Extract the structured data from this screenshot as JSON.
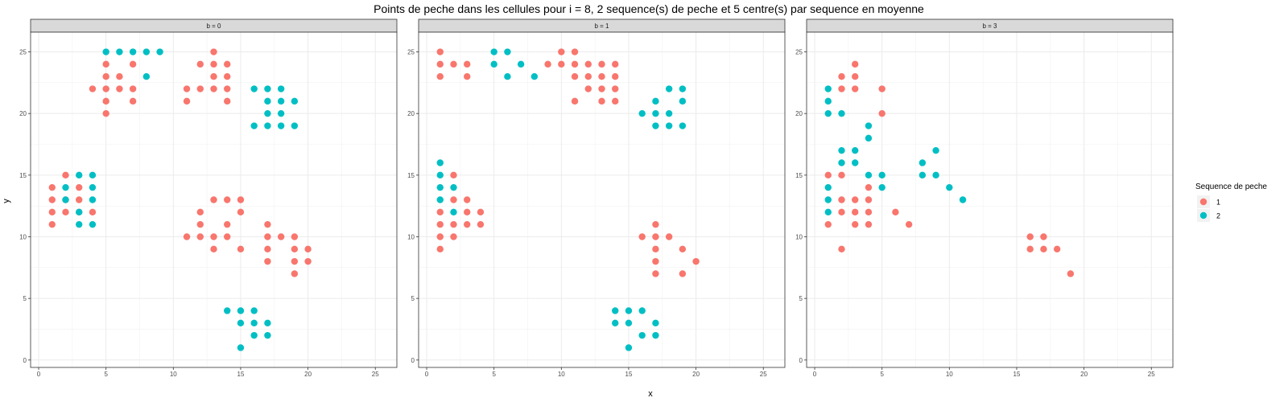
{
  "chart_data": {
    "type": "scatter",
    "title": "Points de peche dans les cellules pour i = 8, 2 sequence(s) de peche et 5 centre(s) par sequence en moyenne",
    "xlabel": "x",
    "ylabel": "y",
    "xlim": [
      -0.6,
      26.6
    ],
    "ylim": [
      -0.6,
      26.6
    ],
    "x_ticks": [
      0,
      5,
      10,
      15,
      20,
      25
    ],
    "y_ticks": [
      0,
      5,
      10,
      15,
      20,
      25
    ],
    "grid": true,
    "legend": {
      "title": "Sequence de peche",
      "position": "right",
      "entries": [
        {
          "label": "1",
          "color": "#F8766D"
        },
        {
          "label": "2",
          "color": "#00BFC4"
        }
      ]
    },
    "panels": [
      {
        "strip": "b = 0",
        "series": [
          {
            "label": "1",
            "color": "#F8766D",
            "points": [
              [
                1,
                11
              ],
              [
                1,
                12
              ],
              [
                1,
                13
              ],
              [
                1,
                14
              ],
              [
                2,
                12
              ],
              [
                2,
                13
              ],
              [
                2,
                15
              ],
              [
                3,
                12
              ],
              [
                3,
                13
              ],
              [
                3,
                14
              ],
              [
                4,
                12
              ],
              [
                4,
                22
              ],
              [
                5,
                20
              ],
              [
                5,
                21
              ],
              [
                5,
                22
              ],
              [
                5,
                23
              ],
              [
                5,
                24
              ],
              [
                6,
                22
              ],
              [
                6,
                23
              ],
              [
                7,
                21
              ],
              [
                7,
                22
              ],
              [
                7,
                24
              ],
              [
                11,
                21
              ],
              [
                11,
                22
              ],
              [
                12,
                22
              ],
              [
                12,
                24
              ],
              [
                13,
                22
              ],
              [
                13,
                23
              ],
              [
                13,
                24
              ],
              [
                13,
                25
              ],
              [
                14,
                21
              ],
              [
                14,
                22
              ],
              [
                14,
                23
              ],
              [
                14,
                24
              ],
              [
                11,
                10
              ],
              [
                12,
                10
              ],
              [
                12,
                11
              ],
              [
                12,
                12
              ],
              [
                13,
                9
              ],
              [
                13,
                10
              ],
              [
                13,
                13
              ],
              [
                14,
                10
              ],
              [
                14,
                11
              ],
              [
                14,
                13
              ],
              [
                15,
                9
              ],
              [
                15,
                12
              ],
              [
                15,
                13
              ],
              [
                17,
                8
              ],
              [
                17,
                9
              ],
              [
                17,
                10
              ],
              [
                17,
                11
              ],
              [
                18,
                10
              ],
              [
                19,
                7
              ],
              [
                19,
                8
              ],
              [
                19,
                9
              ],
              [
                19,
                10
              ],
              [
                20,
                8
              ],
              [
                20,
                9
              ]
            ]
          },
          {
            "label": "2",
            "color": "#00BFC4",
            "points": [
              [
                2,
                13
              ],
              [
                2,
                14
              ],
              [
                3,
                11
              ],
              [
                3,
                12
              ],
              [
                3,
                15
              ],
              [
                4,
                11
              ],
              [
                4,
                13
              ],
              [
                4,
                14
              ],
              [
                4,
                15
              ],
              [
                5,
                25
              ],
              [
                6,
                25
              ],
              [
                7,
                25
              ],
              [
                8,
                23
              ],
              [
                8,
                25
              ],
              [
                9,
                25
              ],
              [
                16,
                19
              ],
              [
                16,
                22
              ],
              [
                17,
                19
              ],
              [
                17,
                20
              ],
              [
                17,
                21
              ],
              [
                17,
                22
              ],
              [
                18,
                19
              ],
              [
                18,
                20
              ],
              [
                18,
                21
              ],
              [
                18,
                22
              ],
              [
                19,
                19
              ],
              [
                19,
                21
              ],
              [
                14,
                4
              ],
              [
                15,
                1
              ],
              [
                15,
                3
              ],
              [
                15,
                4
              ],
              [
                16,
                2
              ],
              [
                16,
                3
              ],
              [
                16,
                4
              ],
              [
                17,
                2
              ],
              [
                17,
                3
              ]
            ]
          }
        ]
      },
      {
        "strip": "b = 1",
        "series": [
          {
            "label": "1",
            "color": "#F8766D",
            "points": [
              [
                1,
                9
              ],
              [
                1,
                10
              ],
              [
                1,
                11
              ],
              [
                1,
                12
              ],
              [
                2,
                10
              ],
              [
                2,
                11
              ],
              [
                2,
                13
              ],
              [
                2,
                15
              ],
              [
                3,
                11
              ],
              [
                3,
                12
              ],
              [
                3,
                13
              ],
              [
                4,
                11
              ],
              [
                4,
                12
              ],
              [
                1,
                23
              ],
              [
                1,
                24
              ],
              [
                1,
                25
              ],
              [
                2,
                24
              ],
              [
                3,
                23
              ],
              [
                3,
                24
              ],
              [
                9,
                24
              ],
              [
                10,
                24
              ],
              [
                10,
                25
              ],
              [
                11,
                21
              ],
              [
                11,
                23
              ],
              [
                11,
                24
              ],
              [
                11,
                25
              ],
              [
                12,
                22
              ],
              [
                12,
                23
              ],
              [
                12,
                24
              ],
              [
                13,
                21
              ],
              [
                13,
                22
              ],
              [
                13,
                23
              ],
              [
                13,
                24
              ],
              [
                14,
                21
              ],
              [
                14,
                22
              ],
              [
                14,
                23
              ],
              [
                14,
                24
              ],
              [
                16,
                10
              ],
              [
                17,
                7
              ],
              [
                17,
                8
              ],
              [
                17,
                9
              ],
              [
                17,
                10
              ],
              [
                17,
                11
              ],
              [
                18,
                10
              ],
              [
                19,
                7
              ],
              [
                19,
                9
              ],
              [
                20,
                8
              ]
            ]
          },
          {
            "label": "2",
            "color": "#00BFC4",
            "points": [
              [
                1,
                13
              ],
              [
                1,
                14
              ],
              [
                1,
                15
              ],
              [
                1,
                16
              ],
              [
                2,
                12
              ],
              [
                2,
                14
              ],
              [
                5,
                24
              ],
              [
                5,
                25
              ],
              [
                6,
                23
              ],
              [
                6,
                25
              ],
              [
                7,
                24
              ],
              [
                8,
                23
              ],
              [
                16,
                20
              ],
              [
                17,
                19
              ],
              [
                17,
                20
              ],
              [
                17,
                21
              ],
              [
                18,
                19
              ],
              [
                18,
                20
              ],
              [
                18,
                22
              ],
              [
                19,
                19
              ],
              [
                19,
                21
              ],
              [
                19,
                22
              ],
              [
                14,
                3
              ],
              [
                14,
                4
              ],
              [
                15,
                1
              ],
              [
                15,
                3
              ],
              [
                15,
                4
              ],
              [
                16,
                2
              ],
              [
                16,
                4
              ],
              [
                17,
                2
              ],
              [
                17,
                3
              ]
            ]
          }
        ]
      },
      {
        "strip": "b = 3",
        "series": [
          {
            "label": "1",
            "color": "#F8766D",
            "points": [
              [
                1,
                11
              ],
              [
                1,
                15
              ],
              [
                2,
                9
              ],
              [
                2,
                12
              ],
              [
                2,
                13
              ],
              [
                2,
                15
              ],
              [
                2,
                22
              ],
              [
                2,
                23
              ],
              [
                3,
                11
              ],
              [
                3,
                12
              ],
              [
                3,
                13
              ],
              [
                3,
                22
              ],
              [
                3,
                23
              ],
              [
                3,
                24
              ],
              [
                4,
                11
              ],
              [
                4,
                12
              ],
              [
                4,
                13
              ],
              [
                4,
                14
              ],
              [
                5,
                20
              ],
              [
                5,
                22
              ],
              [
                6,
                12
              ],
              [
                7,
                11
              ],
              [
                16,
                9
              ],
              [
                16,
                10
              ],
              [
                17,
                9
              ],
              [
                17,
                10
              ],
              [
                18,
                9
              ],
              [
                19,
                7
              ]
            ]
          },
          {
            "label": "2",
            "color": "#00BFC4",
            "points": [
              [
                1,
                12
              ],
              [
                1,
                13
              ],
              [
                1,
                14
              ],
              [
                1,
                20
              ],
              [
                1,
                21
              ],
              [
                1,
                22
              ],
              [
                2,
                16
              ],
              [
                2,
                17
              ],
              [
                2,
                20
              ],
              [
                3,
                16
              ],
              [
                3,
                17
              ],
              [
                4,
                15
              ],
              [
                4,
                18
              ],
              [
                4,
                19
              ],
              [
                5,
                14
              ],
              [
                5,
                15
              ],
              [
                8,
                15
              ],
              [
                8,
                16
              ],
              [
                9,
                15
              ],
              [
                9,
                17
              ],
              [
                10,
                14
              ],
              [
                11,
                13
              ]
            ]
          }
        ]
      }
    ]
  }
}
